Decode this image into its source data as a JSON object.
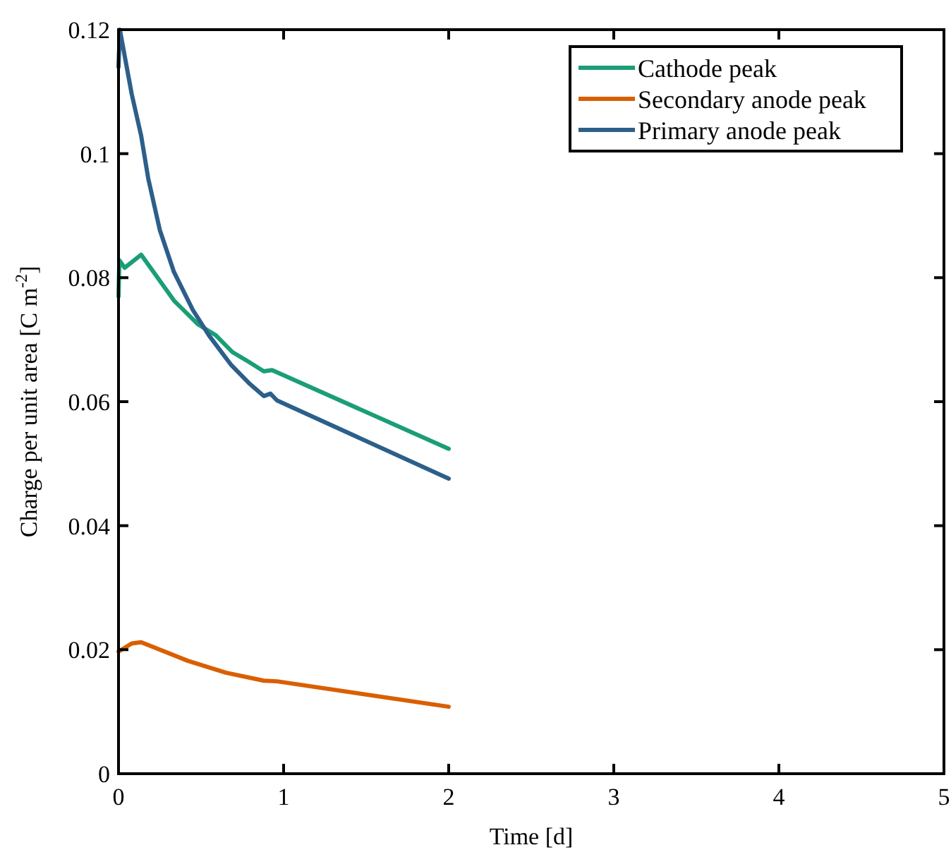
{
  "chart_data": {
    "type": "line",
    "xlabel": "Time [d]",
    "ylabel": "Charge per unit area [C m$^{-2}$]",
    "xlim": [
      0,
      5
    ],
    "xticks": [
      0,
      1,
      2,
      3,
      4,
      5
    ],
    "ylim": [
      0,
      0.12
    ],
    "yticks": [
      0,
      0.02,
      0.04,
      0.06,
      0.08,
      0.1,
      0.12
    ],
    "grid": false,
    "legend": "top right",
    "marker": "none",
    "line_style": "solid",
    "series": [
      {
        "name": "Cathode peak",
        "color": "#1b9e77",
        "x": [
          0,
          0.005,
          0.037,
          0.137,
          0.336,
          0.48,
          0.59,
          0.69,
          0.79,
          0.88,
          0.93,
          2
        ],
        "values": [
          0.077,
          0.0828,
          0.0816,
          0.0837,
          0.0763,
          0.0725,
          0.0707,
          0.068,
          0.0664,
          0.0649,
          0.0651,
          0.0524
        ]
      },
      {
        "name": "Secondary anode peak",
        "color": "#d95f02",
        "x": [
          0,
          0.08,
          0.137,
          0.42,
          0.65,
          0.88,
          0.96,
          2
        ],
        "values": [
          0.0197,
          0.021,
          0.0212,
          0.0182,
          0.0163,
          0.015,
          0.0149,
          0.0108
        ]
      },
      {
        "name": "Primary anode peak",
        "color": "#2c5f8a",
        "x": [
          0,
          0.008,
          0.08,
          0.137,
          0.18,
          0.25,
          0.336,
          0.45,
          0.55,
          0.68,
          0.79,
          0.88,
          0.92,
          0.96,
          2
        ],
        "values": [
          0.114,
          0.12,
          0.1096,
          0.1029,
          0.096,
          0.0877,
          0.0809,
          0.0748,
          0.0706,
          0.066,
          0.063,
          0.0609,
          0.0613,
          0.0602,
          0.0476
        ]
      }
    ]
  }
}
